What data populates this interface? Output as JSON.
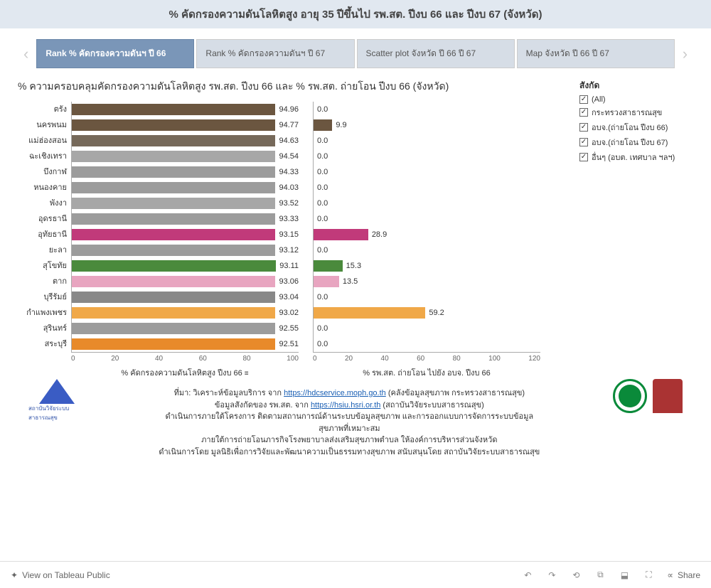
{
  "header": {
    "title": "% คัดกรองความดันโลหิตสูง อายุ 35 ปีขึ้นไป รพ.สต. ปีงบ 66 และ ปีงบ 67 (จังหวัด)"
  },
  "tabs": [
    {
      "label": "Rank % คัดกรองความดันฯ ปี 66",
      "active": true
    },
    {
      "label": "Rank % คัดกรองความดันฯ ปี 67",
      "active": false
    },
    {
      "label": "Scatter plot จังหวัด ปี 66 ปี 67",
      "active": false
    },
    {
      "label": "Map จังหวัด ปี 66 ปี 67",
      "active": false
    }
  ],
  "chart": {
    "title": "% ความครอบคลุมคัดกรองความดันโลหิตสูง รพ.สต. ปีงบ 66 และ % รพ.สต. ถ่ายโอน ปีงบ 66 (จังหวัด)",
    "left": {
      "x_title": "% คัดกรองความดันโลหิตสูง ปีงบ 66",
      "xlim": [
        0,
        100
      ],
      "xticks": [
        0,
        20,
        40,
        60,
        80,
        100
      ]
    },
    "right": {
      "x_title": "% รพ.สต. ถ่ายโอน ไปยัง อบจ. ปีงบ 66",
      "xlim": [
        0,
        120
      ],
      "xticks": [
        0,
        20,
        40,
        60,
        80,
        100,
        120
      ]
    },
    "rows": [
      {
        "label": "ตรัง",
        "val1": 94.96,
        "color1": "#6b5640",
        "val2": 0.0,
        "color2": "#6b5640"
      },
      {
        "label": "นครพนม",
        "val1": 94.77,
        "color1": "#6b5640",
        "val2": 9.9,
        "color2": "#6b5640"
      },
      {
        "label": "แม่ฮ่องสอน",
        "val1": 94.63,
        "color1": "#76695a",
        "val2": 0.0,
        "color2": "#76695a"
      },
      {
        "label": "ฉะเชิงเทรา",
        "val1": 94.54,
        "color1": "#a7a7a7",
        "val2": 0.0,
        "color2": "#a7a7a7"
      },
      {
        "label": "บึงกาฬ",
        "val1": 94.33,
        "color1": "#9c9c9c",
        "val2": 0.0,
        "color2": "#9c9c9c"
      },
      {
        "label": "หนองคาย",
        "val1": 94.03,
        "color1": "#9c9c9c",
        "val2": 0.0,
        "color2": "#9c9c9c"
      },
      {
        "label": "พังงา",
        "val1": 93.52,
        "color1": "#a7a7a7",
        "val2": 0.0,
        "color2": "#a7a7a7"
      },
      {
        "label": "อุดรธานี",
        "val1": 93.33,
        "color1": "#9c9c9c",
        "val2": 0.0,
        "color2": "#9c9c9c"
      },
      {
        "label": "อุทัยธานี",
        "val1": 93.15,
        "color1": "#c13a7a",
        "val2": 28.9,
        "color2": "#c13a7a"
      },
      {
        "label": "ยะลา",
        "val1": 93.12,
        "color1": "#9c9c9c",
        "val2": 0.0,
        "color2": "#9c9c9c"
      },
      {
        "label": "สุโขทัย",
        "val1": 93.11,
        "color1": "#4a8a3c",
        "val2": 15.3,
        "color2": "#4a8a3c"
      },
      {
        "label": "ตาก",
        "val1": 93.06,
        "color1": "#e8a5c0",
        "val2": 13.5,
        "color2": "#e8a5c0"
      },
      {
        "label": "บุรีรัมย์",
        "val1": 93.04,
        "color1": "#888888",
        "val2": 0.0,
        "color2": "#888888"
      },
      {
        "label": "กำแพงเพชร",
        "val1": 93.02,
        "color1": "#f0a848",
        "val2": 59.2,
        "color2": "#f0a848"
      },
      {
        "label": "สุรินทร์",
        "val1": 92.55,
        "color1": "#9c9c9c",
        "val2": 0.0,
        "color2": "#9c9c9c"
      },
      {
        "label": "สระบุรี",
        "val1": 92.51,
        "color1": "#e88a2a",
        "val2": 0.0,
        "color2": "#e88a2a"
      }
    ]
  },
  "legend": {
    "title": "สังกัด",
    "items": [
      {
        "label": "(All)",
        "checked": true
      },
      {
        "label": "กระทรวงสาธารณสุข",
        "checked": true
      },
      {
        "label": "อบจ.(ถ่ายโอน ปีงบ 66)",
        "checked": true
      },
      {
        "label": "อบจ.(ถ่ายโอน ปีงบ 67)",
        "checked": true
      },
      {
        "label": "อื่นๆ (อบต. เทศบาล ฯลฯ)",
        "checked": true
      }
    ]
  },
  "footer": {
    "line1_pre": "ที่มา: วิเคราะห์ข้อมูลบริการ จาก ",
    "link1": "https://hdcservice.moph.go.th",
    "line1_post": " (คลังข้อมูลสุขภาพ กระทรวงสาธารณสุข)",
    "line2_pre": "ข้อมูลสังกัดของ รพ.สต. จาก ",
    "link2": "https://hsiu.hsri.or.th",
    "line2_post": " (สถาบันวิจัยระบบสาธารณสุข)",
    "line3": "ดำเนินการภายใต้โครงการ ติดตามสถานการณ์ด้านระบบข้อมูลสุขภาพ และการออกแบบการจัดการระบบข้อมูลสุขภาพที่เหมาะสม",
    "line4": "ภายใต้การถ่ายโอนภารกิจโรงพยาบาลส่งเสริมสุขภาพตำบล ให้องค์การบริหารส่วนจังหวัด",
    "line5": "ดำเนินการโดย มูลนิธิเพื่อการวิจัยและพัฒนาความเป็นธรรมทางสุขภาพ สนับสนุนโดย สถาบันวิจัยระบบสาธารณสุข",
    "logo_left_text": "สถาบันวิจัยระบบสาธารณสุข"
  },
  "toolbar": {
    "view_label": "View on Tableau Public",
    "share_label": "Share"
  }
}
